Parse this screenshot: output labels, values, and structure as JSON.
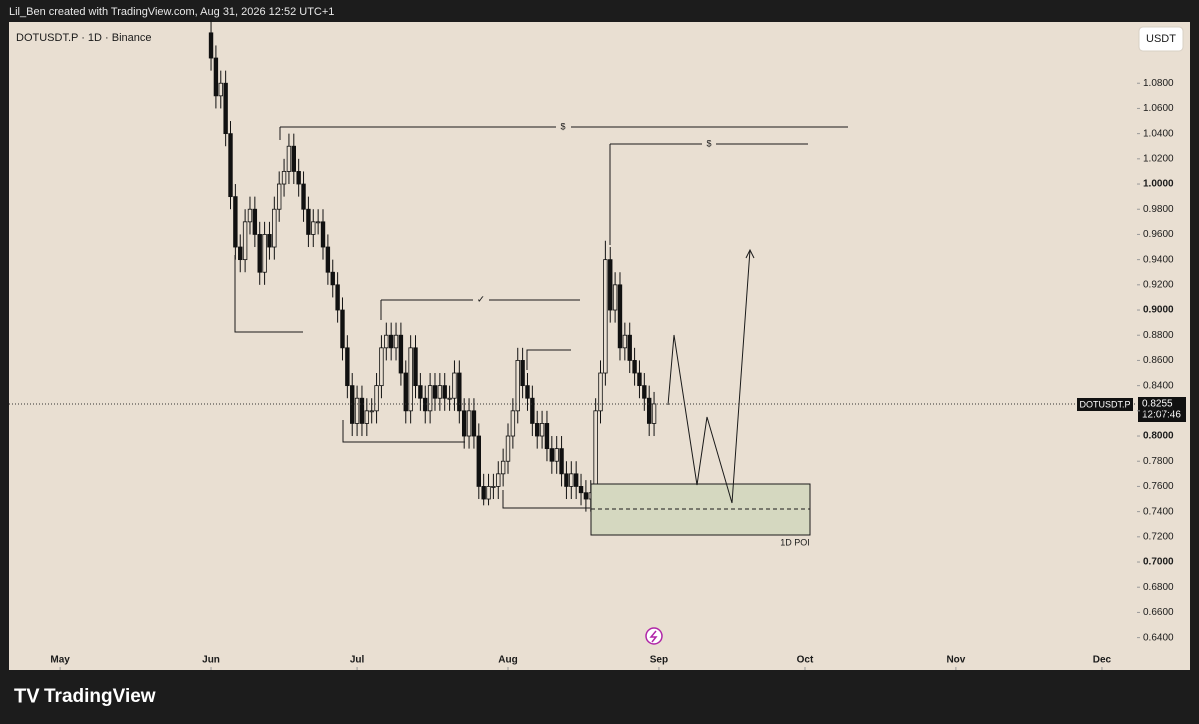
{
  "chart_data": {
    "type": "candlestick",
    "caption": "Lil_Ben created with TradingView.com, Aug 31, 2026 12:52 UTC+1",
    "symbol_label": "DOTUSDT.P · 1D · Binance",
    "currency": "USDT",
    "price_tag_name": "DOTUSDT.P",
    "countdown": "12:07:46",
    "annotations": [
      "$",
      "$",
      "✓",
      "1D POI"
    ],
    "footer_brand": "TradingView",
    "up_color": "#e9dfd2",
    "down_color": "#111111",
    "grid": false,
    "x": [
      31,
      32,
      33,
      34,
      35,
      36,
      37,
      38,
      39,
      40,
      41,
      42,
      43,
      44,
      45,
      46,
      47,
      48,
      49,
      50,
      51,
      52,
      53,
      54,
      55,
      56,
      57,
      58,
      59,
      60,
      61,
      62,
      63,
      64,
      65,
      66,
      67,
      68,
      69,
      70,
      71,
      72,
      73,
      74,
      75,
      76,
      77,
      78,
      79,
      80,
      81,
      82,
      83,
      84,
      85,
      86,
      87,
      88,
      89,
      90,
      91,
      92,
      93,
      94,
      95,
      96,
      97,
      98,
      99,
      100,
      101,
      102,
      103,
      104,
      105,
      106,
      107,
      108,
      109,
      110,
      111,
      112,
      113,
      114,
      115,
      116,
      117,
      118,
      119,
      120,
      121,
      122
    ],
    "open": [
      1.12,
      1.1,
      1.07,
      1.08,
      1.04,
      0.99,
      0.95,
      0.94,
      0.97,
      0.98,
      0.96,
      0.93,
      0.96,
      0.95,
      0.98,
      1.0,
      1.01,
      1.03,
      1.01,
      1.0,
      0.98,
      0.96,
      0.97,
      0.97,
      0.95,
      0.93,
      0.92,
      0.9,
      0.87,
      0.84,
      0.81,
      0.83,
      0.81,
      0.82,
      0.82,
      0.84,
      0.87,
      0.88,
      0.87,
      0.88,
      0.85,
      0.82,
      0.87,
      0.84,
      0.83,
      0.82,
      0.84,
      0.83,
      0.84,
      0.83,
      0.83,
      0.85,
      0.82,
      0.8,
      0.82,
      0.8,
      0.76,
      0.75,
      0.76,
      0.76,
      0.77,
      0.78,
      0.8,
      0.82,
      0.86,
      0.84,
      0.83,
      0.81,
      0.8,
      0.81,
      0.79,
      0.78,
      0.79,
      0.77,
      0.76,
      0.77,
      0.76,
      0.755,
      0.75,
      0.755,
      0.82,
      0.85,
      0.94,
      0.9,
      0.92,
      0.87,
      0.88,
      0.86,
      0.85,
      0.84,
      0.83,
      0.81
    ],
    "high": [
      1.13,
      1.11,
      1.09,
      1.09,
      1.05,
      1.0,
      0.96,
      0.98,
      0.99,
      0.99,
      0.97,
      0.97,
      0.97,
      0.99,
      1.01,
      1.02,
      1.04,
      1.04,
      1.02,
      1.01,
      0.99,
      0.98,
      0.98,
      0.98,
      0.96,
      0.94,
      0.93,
      0.91,
      0.88,
      0.85,
      0.84,
      0.84,
      0.83,
      0.83,
      0.85,
      0.88,
      0.89,
      0.89,
      0.89,
      0.89,
      0.86,
      0.88,
      0.88,
      0.85,
      0.84,
      0.85,
      0.85,
      0.85,
      0.85,
      0.84,
      0.86,
      0.86,
      0.83,
      0.83,
      0.83,
      0.81,
      0.77,
      0.77,
      0.77,
      0.78,
      0.79,
      0.81,
      0.83,
      0.87,
      0.87,
      0.85,
      0.84,
      0.82,
      0.82,
      0.82,
      0.8,
      0.8,
      0.8,
      0.78,
      0.78,
      0.78,
      0.77,
      0.765,
      0.765,
      0.83,
      0.86,
      0.955,
      0.95,
      0.93,
      0.93,
      0.89,
      0.89,
      0.87,
      0.86,
      0.85,
      0.84,
      0.835
    ],
    "low": [
      1.09,
      1.06,
      1.06,
      1.03,
      0.98,
      0.94,
      0.93,
      0.93,
      0.96,
      0.95,
      0.92,
      0.92,
      0.94,
      0.94,
      0.97,
      0.99,
      1.0,
      1.0,
      0.99,
      0.97,
      0.95,
      0.95,
      0.96,
      0.94,
      0.92,
      0.91,
      0.89,
      0.86,
      0.83,
      0.8,
      0.8,
      0.8,
      0.8,
      0.81,
      0.81,
      0.83,
      0.86,
      0.86,
      0.86,
      0.84,
      0.81,
      0.81,
      0.83,
      0.82,
      0.81,
      0.81,
      0.82,
      0.82,
      0.82,
      0.82,
      0.82,
      0.81,
      0.79,
      0.79,
      0.79,
      0.75,
      0.745,
      0.745,
      0.75,
      0.75,
      0.76,
      0.77,
      0.79,
      0.81,
      0.83,
      0.82,
      0.8,
      0.79,
      0.79,
      0.78,
      0.77,
      0.77,
      0.76,
      0.75,
      0.75,
      0.75,
      0.745,
      0.74,
      0.74,
      0.745,
      0.81,
      0.84,
      0.89,
      0.89,
      0.86,
      0.86,
      0.85,
      0.84,
      0.83,
      0.82,
      0.8,
      0.8
    ],
    "close": [
      1.1,
      1.07,
      1.08,
      1.04,
      0.99,
      0.95,
      0.94,
      0.97,
      0.98,
      0.96,
      0.93,
      0.96,
      0.95,
      0.98,
      1.0,
      1.01,
      1.03,
      1.01,
      1.0,
      0.98,
      0.96,
      0.97,
      0.97,
      0.95,
      0.93,
      0.92,
      0.9,
      0.87,
      0.84,
      0.81,
      0.83,
      0.81,
      0.82,
      0.82,
      0.84,
      0.87,
      0.88,
      0.87,
      0.88,
      0.85,
      0.82,
      0.87,
      0.84,
      0.83,
      0.82,
      0.84,
      0.83,
      0.84,
      0.83,
      0.83,
      0.85,
      0.82,
      0.8,
      0.82,
      0.8,
      0.76,
      0.75,
      0.76,
      0.76,
      0.77,
      0.78,
      0.8,
      0.82,
      0.86,
      0.84,
      0.83,
      0.81,
      0.8,
      0.81,
      0.79,
      0.78,
      0.79,
      0.77,
      0.76,
      0.77,
      0.76,
      0.755,
      0.75,
      0.755,
      0.82,
      0.85,
      0.94,
      0.9,
      0.92,
      0.87,
      0.88,
      0.86,
      0.85,
      0.84,
      0.83,
      0.81,
      0.8255
    ],
    "xlim": [
      -10.5,
      221.2
    ],
    "xticks": [
      {
        "value": 0,
        "label": "May"
      },
      {
        "value": 31,
        "label": "Jun"
      },
      {
        "value": 61,
        "label": "Jul"
      },
      {
        "value": 92,
        "label": "Aug"
      },
      {
        "value": 123,
        "label": "Sep"
      },
      {
        "value": 153,
        "label": "Oct"
      },
      {
        "value": 184,
        "label": "Nov"
      },
      {
        "value": 214,
        "label": "Dec"
      }
    ],
    "ylim": [
      0.6143,
      1.1286
    ],
    "yticks": [
      {
        "value": 0.64,
        "label": "0.6400"
      },
      {
        "value": 0.66,
        "label": "0.6600"
      },
      {
        "value": 0.68,
        "label": "0.6800"
      },
      {
        "value": 0.7,
        "label": "0.7000"
      },
      {
        "value": 0.72,
        "label": "0.7200"
      },
      {
        "value": 0.74,
        "label": "0.7400"
      },
      {
        "value": 0.76,
        "label": "0.7600"
      },
      {
        "value": 0.78,
        "label": "0.7800"
      },
      {
        "value": 0.8,
        "label": "0.8000"
      },
      {
        "value": 0.82,
        "label": "0.8200"
      },
      {
        "value": 0.84,
        "label": "0.8400"
      },
      {
        "value": 0.86,
        "label": "0.8600"
      },
      {
        "value": 0.88,
        "label": "0.8800"
      },
      {
        "value": 0.9,
        "label": "0.9000"
      },
      {
        "value": 0.92,
        "label": "0.9200"
      },
      {
        "value": 0.94,
        "label": "0.9400"
      },
      {
        "value": 0.96,
        "label": "0.9600"
      },
      {
        "value": 0.98,
        "label": "0.9800"
      },
      {
        "value": 1.0,
        "label": "1.0000"
      },
      {
        "value": 1.02,
        "label": "1.0200"
      },
      {
        "value": 1.04,
        "label": "1.0400"
      },
      {
        "value": 1.06,
        "label": "1.0600"
      },
      {
        "value": 1.08,
        "label": "1.0800"
      }
    ]
  }
}
